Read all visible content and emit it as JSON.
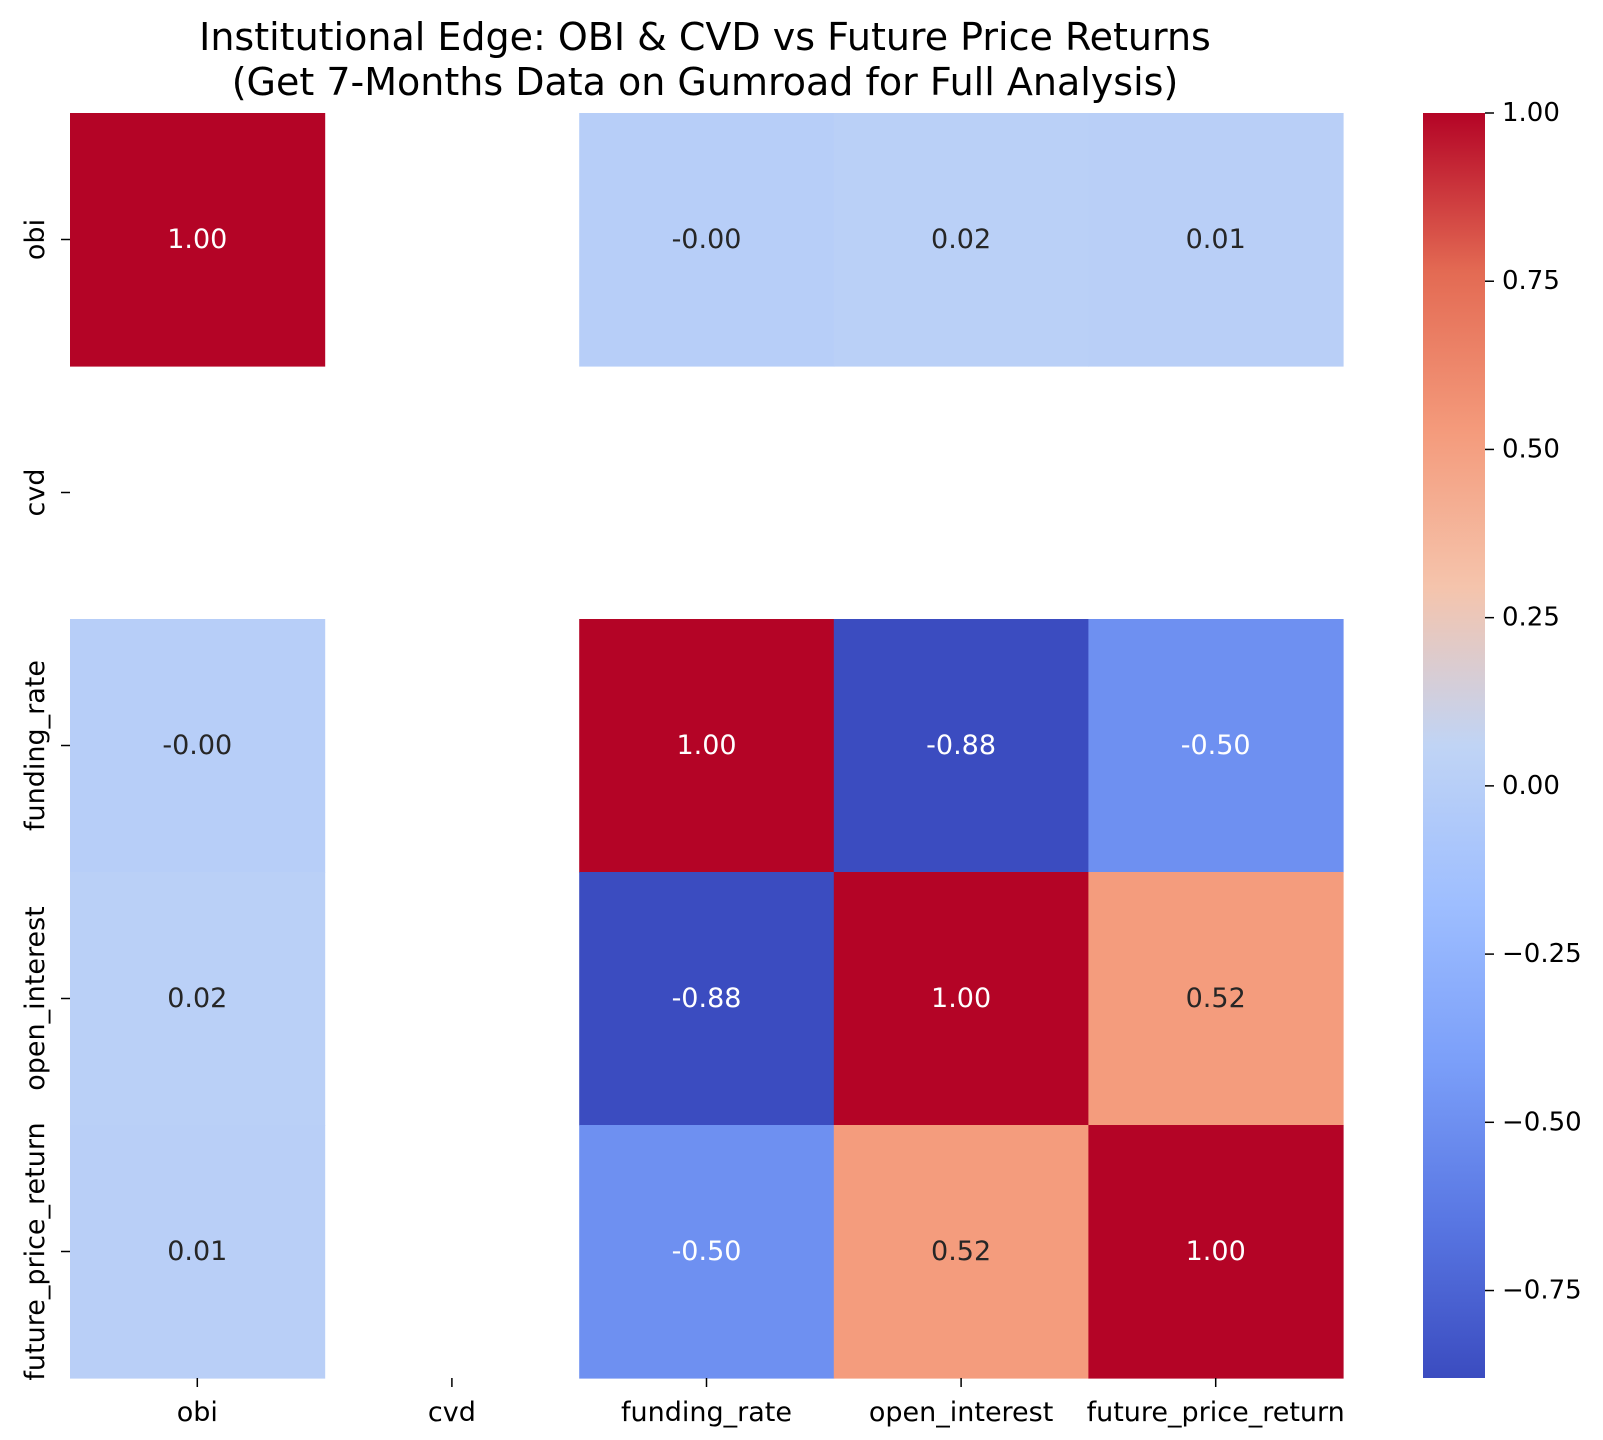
{
  "chart_data": {
    "type": "heatmap",
    "title_line1": "Institutional Edge: OBI & CVD vs Future Price Returns",
    "title_line2": "(Get 7-Months Data on Gumroad for Full Analysis)",
    "row_labels": [
      "obi",
      "cvd",
      "funding_rate",
      "open_interest",
      "future_price_return"
    ],
    "col_labels": [
      "obi",
      "cvd",
      "funding_rate",
      "open_interest",
      "future_price_return"
    ],
    "values": [
      [
        1.0,
        null,
        -0.0,
        0.02,
        0.01
      ],
      [
        null,
        null,
        null,
        null,
        null
      ],
      [
        -0.0,
        null,
        1.0,
        -0.88,
        -0.5
      ],
      [
        0.02,
        null,
        -0.88,
        1.0,
        0.52
      ],
      [
        0.01,
        null,
        -0.5,
        0.52,
        1.0
      ]
    ],
    "annotations": [
      [
        "1.00",
        "",
        "-0.00",
        "0.02",
        "0.01"
      ],
      [
        "",
        "",
        "",
        "",
        ""
      ],
      [
        "-0.00",
        "",
        "1.00",
        "-0.88",
        "-0.50"
      ],
      [
        "0.02",
        "",
        "-0.88",
        "1.00",
        "0.52"
      ],
      [
        "0.01",
        "",
        "-0.50",
        "0.52",
        "1.00"
      ]
    ],
    "colormap": "coolwarm",
    "vmin": -0.88,
    "vmax": 1.0,
    "colorbar_ticks": [
      "1.00",
      "0.75",
      "0.50",
      "0.25",
      "0.00",
      "−0.25",
      "−0.50",
      "−0.75"
    ],
    "colorbar_tick_values": [
      1.0,
      0.75,
      0.5,
      0.25,
      0.0,
      -0.25,
      -0.5,
      -0.75
    ],
    "grid": false
  }
}
